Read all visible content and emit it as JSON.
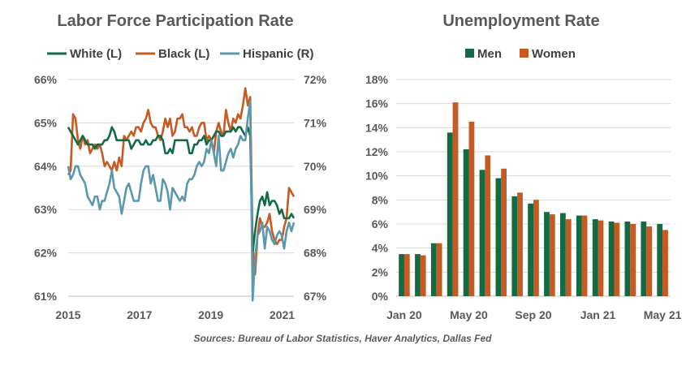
{
  "source_note": "Sources: Bureau of Labor Statistics, Haver Analytics, Dallas Fed",
  "colors": {
    "white": "#136B46",
    "black": "#C55A22",
    "hispanic": "#5B98AE",
    "men": "#136B46",
    "women": "#C55A22",
    "grid": "#D9D9D9"
  },
  "chart_data": [
    {
      "type": "line",
      "title": "Labor Force Participation Rate",
      "xlabel": "",
      "ylabel": "",
      "x_ticks": [
        "2015",
        "2017",
        "2019",
        "2021"
      ],
      "xlim": [
        2015,
        2021.33
      ],
      "y_left_ticks": [
        "61%",
        "62%",
        "63%",
        "64%",
        "65%",
        "66%"
      ],
      "y_left_lim": [
        61,
        66
      ],
      "y_right_ticks": [
        "67%",
        "68%",
        "69%",
        "70%",
        "71%",
        "72%"
      ],
      "y_right_lim": [
        67,
        72
      ],
      "legend_position": "top",
      "grid": true,
      "series": [
        {
          "name": "White (L)",
          "axis": "left",
          "color": "#136B46",
          "values": [
            64.9,
            64.8,
            64.7,
            64.6,
            64.5,
            64.6,
            64.7,
            64.6,
            64.5,
            64.5,
            64.5,
            64.4,
            64.5,
            64.5,
            64.5,
            64.6,
            64.6,
            64.7,
            64.9,
            64.8,
            64.6,
            64.6,
            64.6,
            64.6,
            64.6,
            64.6,
            64.4,
            64.5,
            64.6,
            64.6,
            64.5,
            64.5,
            64.6,
            64.5,
            64.5,
            64.6,
            64.6,
            64.7,
            64.7,
            64.6,
            64.3,
            64.3,
            64.4,
            64.3,
            64.6,
            64.6,
            64.6,
            64.6,
            64.6,
            64.6,
            64.3,
            64.3,
            64.5,
            64.5,
            64.6,
            64.6,
            64.7,
            64.5,
            64.6,
            64.6,
            64.7,
            64.8,
            64.8,
            64.7,
            64.7,
            64.8,
            64.8,
            64.8,
            64.9,
            64.8,
            64.9,
            64.9,
            64.8,
            64.7,
            64.9,
            64.7,
            62.0,
            62.5,
            62.9,
            63.2,
            63.3,
            63.1,
            63.4,
            63.1,
            63.2,
            63.2,
            63.1,
            62.9,
            63.0,
            62.8,
            62.8,
            62.8,
            62.9,
            62.8
          ]
        },
        {
          "name": "Black (L)",
          "axis": "left",
          "color": "#C55A22",
          "values": [
            63.8,
            63.9,
            65.2,
            65.1,
            64.6,
            64.4,
            64.7,
            64.5,
            64.6,
            64.3,
            64.4,
            64.5,
            64.4,
            64.5,
            64.3,
            64.0,
            64.1,
            64.0,
            63.9,
            64.1,
            63.9,
            64.2,
            64.0,
            64.7,
            64.6,
            64.7,
            64.8,
            64.7,
            64.9,
            64.9,
            64.8,
            65.0,
            65.1,
            65.3,
            65.0,
            64.9,
            64.9,
            64.7,
            64.6,
            64.8,
            65.1,
            64.9,
            65.1,
            64.7,
            64.8,
            65.1,
            65.1,
            65.2,
            64.9,
            64.9,
            64.8,
            64.9,
            64.7,
            64.7,
            64.9,
            65.0,
            65.0,
            64.6,
            64.7,
            64.6,
            64.3,
            64.8,
            65.0,
            64.8,
            64.7,
            65.3,
            65.0,
            64.8,
            65.1,
            65.0,
            65.2,
            65.1,
            65.4,
            65.8,
            65.4,
            65.6,
            62.1,
            61.5,
            62.4,
            62.8,
            62.6,
            62.6,
            62.7,
            62.9,
            62.5,
            62.3,
            62.2,
            62.3,
            62.3,
            62.6,
            62.8,
            63.5,
            63.4,
            63.3
          ]
        },
        {
          "name": "Hispanic (R)",
          "axis": "right",
          "color": "#5B98AE",
          "values": [
            70.0,
            69.7,
            69.8,
            70.0,
            70.0,
            69.8,
            69.7,
            69.6,
            69.3,
            69.2,
            69.1,
            69.3,
            69.3,
            69.0,
            69.2,
            69.2,
            69.4,
            69.6,
            69.9,
            69.5,
            69.4,
            69.3,
            68.9,
            69.2,
            69.5,
            69.6,
            69.4,
            69.2,
            69.2,
            69.2,
            69.6,
            69.9,
            70.0,
            70.0,
            69.6,
            69.8,
            69.5,
            69.2,
            69.2,
            69.7,
            69.6,
            69.4,
            69.0,
            69.5,
            69.4,
            69.3,
            69.2,
            69.3,
            69.2,
            69.6,
            69.7,
            69.7,
            69.8,
            70.0,
            70.1,
            70.0,
            70.1,
            70.4,
            70.3,
            70.6,
            70.3,
            70.0,
            70.7,
            69.9,
            69.9,
            70.1,
            70.3,
            70.4,
            70.2,
            70.4,
            70.5,
            70.7,
            70.6,
            70.6,
            71.1,
            71.5,
            66.9,
            67.9,
            68.4,
            68.5,
            68.7,
            68.1,
            68.6,
            68.5,
            68.3,
            68.2,
            68.4,
            68.5,
            68.4,
            68.1,
            68.5,
            68.7,
            68.5,
            68.7
          ]
        }
      ]
    },
    {
      "type": "bar",
      "title": "Unemployment Rate",
      "xlabel": "",
      "ylabel": "",
      "categories": [
        "Jan 20",
        "Feb 20",
        "Mar 20",
        "Apr 20",
        "May 20",
        "Jun 20",
        "Jul 20",
        "Aug 20",
        "Sep 20",
        "Oct 20",
        "Nov 20",
        "Dec 20",
        "Jan 21",
        "Feb 21",
        "Mar 21",
        "Apr 21",
        "May 21"
      ],
      "x_tick_labels": [
        "Jan 20",
        "May 20",
        "Sep 20",
        "Jan 21",
        "May 21"
      ],
      "y_ticks": [
        "0%",
        "2%",
        "4%",
        "6%",
        "8%",
        "10%",
        "12%",
        "14%",
        "16%",
        "18%"
      ],
      "ylim": [
        0,
        18
      ],
      "legend_position": "top",
      "grid": true,
      "series": [
        {
          "name": "Men",
          "color": "#136B46",
          "values": [
            3.5,
            3.5,
            4.4,
            13.6,
            12.2,
            10.5,
            9.8,
            8.3,
            7.7,
            7.0,
            6.9,
            6.7,
            6.4,
            6.2,
            6.2,
            6.2,
            6.0
          ]
        },
        {
          "name": "Women",
          "color": "#C55A22",
          "values": [
            3.5,
            3.4,
            4.4,
            16.1,
            14.5,
            11.7,
            10.6,
            8.6,
            8.0,
            6.8,
            6.4,
            6.7,
            6.3,
            6.1,
            6.0,
            5.8,
            5.5
          ]
        }
      ]
    }
  ]
}
